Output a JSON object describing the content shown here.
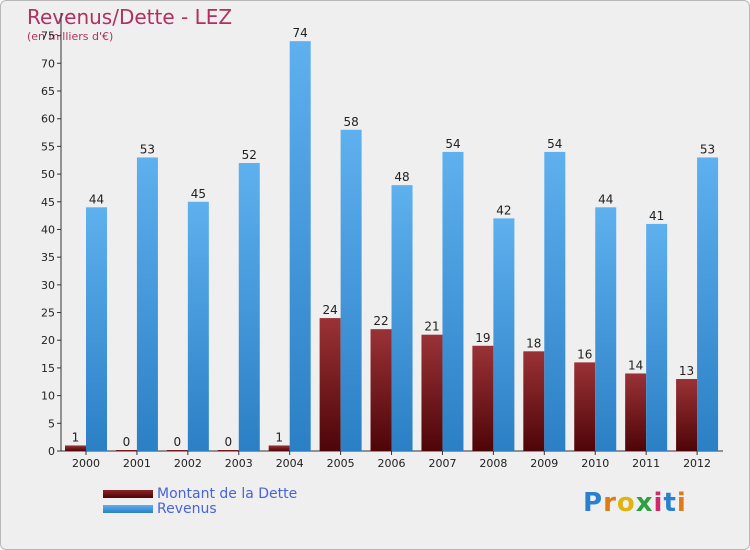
{
  "chart_data": {
    "type": "bar",
    "title": "Revenus/Dette - LEZ",
    "subtitle": "(en milliers d'€)",
    "categories": [
      "2000",
      "2001",
      "2002",
      "2003",
      "2004",
      "2005",
      "2006",
      "2007",
      "2008",
      "2009",
      "2010",
      "2011",
      "2012"
    ],
    "series": [
      {
        "name": "Montant de la Dette",
        "color": "#7a1418",
        "values": [
          1,
          0,
          0,
          0,
          1,
          24,
          22,
          21,
          19,
          18,
          16,
          14,
          13
        ]
      },
      {
        "name": "Revenus",
        "color": "#4b9fe0",
        "values": [
          44,
          53,
          45,
          52,
          74,
          58,
          48,
          54,
          42,
          54,
          44,
          41,
          53
        ]
      }
    ],
    "ylim": [
      0,
      78
    ],
    "yticks": [
      0,
      5,
      10,
      15,
      20,
      25,
      30,
      35,
      40,
      45,
      50,
      55,
      60,
      65,
      70,
      75
    ],
    "grid": false,
    "legend": "bottom-left"
  },
  "logo": {
    "text": "Proxiti",
    "colors": [
      "#2a7fd0",
      "#e07a12",
      "#e0b410",
      "#2aa040",
      "#d02a6a",
      "#2a7fd0",
      "#e07a12"
    ]
  }
}
